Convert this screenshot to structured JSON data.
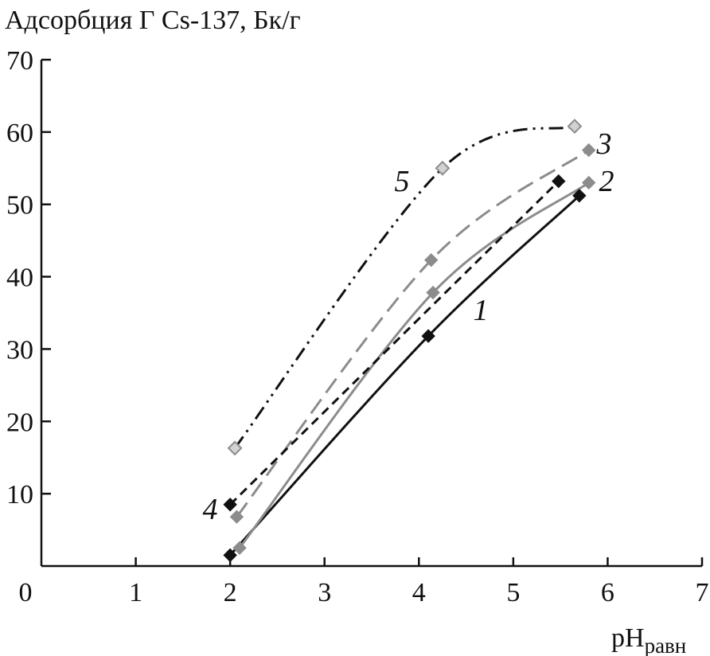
{
  "chart_data": {
    "type": "line",
    "title": "Адсорбция Г Cs-137, Бк/г",
    "xlabel": "pH",
    "xlabel_sub": "равн",
    "xlim": [
      0,
      7
    ],
    "ylim": [
      0,
      70
    ],
    "x_ticks": [
      0,
      1,
      2,
      3,
      4,
      5,
      6,
      7
    ],
    "y_ticks": [
      10,
      20,
      30,
      40,
      50,
      60,
      70
    ],
    "grid": false,
    "legend": "none",
    "series": [
      {
        "name": "1",
        "color": "#111111",
        "dash": "solid",
        "marker": "diamond-filled",
        "x": [
          2.0,
          4.1,
          5.7
        ],
        "y": [
          1.5,
          31.8,
          51.2
        ]
      },
      {
        "name": "2",
        "color": "#8c8c8c",
        "dash": "solid",
        "marker": "diamond-filled",
        "x": [
          2.1,
          4.15,
          5.8
        ],
        "y": [
          2.5,
          37.8,
          53.0
        ]
      },
      {
        "name": "3",
        "color": "#8c8c8c",
        "dash": "long-dash",
        "marker": "diamond-filled",
        "x": [
          2.07,
          4.13,
          5.8
        ],
        "y": [
          6.8,
          42.3,
          57.5
        ]
      },
      {
        "name": "4",
        "color": "#111111",
        "dash": "short-dash",
        "marker": "diamond-filled",
        "x": [
          2.0,
          5.48
        ],
        "y": [
          8.5,
          53.2
        ]
      },
      {
        "name": "5",
        "color": "#111111",
        "dash": "dash-dot-dot",
        "marker": "diamond-open-light",
        "x": [
          2.05,
          4.25,
          5.65
        ],
        "y": [
          16.3,
          55.0,
          60.8
        ]
      }
    ]
  }
}
